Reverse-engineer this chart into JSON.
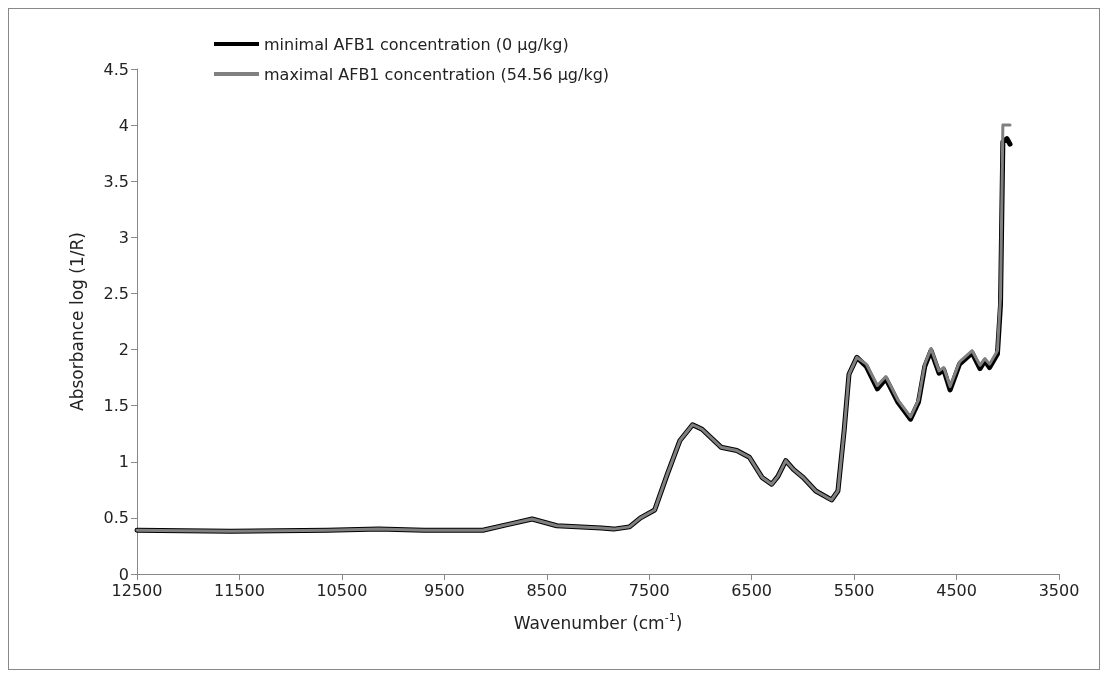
{
  "chart_data": {
    "type": "line",
    "xlabel": "Wavenumber (cm$^{-1}$)",
    "ylabel": "Absorbance log (1/R)",
    "xlim": [
      12500,
      3500
    ],
    "xticks": [
      12500,
      11500,
      10500,
      9500,
      8500,
      7500,
      6500,
      5500,
      4500,
      3500
    ],
    "ylim": [
      0,
      4.5
    ],
    "yticks": [
      0,
      0.5,
      1,
      1.5,
      2,
      2.5,
      3,
      3.5,
      4,
      4.5
    ],
    "grid": false,
    "legend": "top left",
    "marker": "none",
    "line_style": "solid",
    "series": [
      {
        "name": "minimal AFB1 concentration (0 µg/kg)",
        "color": "#000000",
        "x": [
          12500,
          11584,
          10641,
          10141,
          9697,
          9124,
          8643,
          8402,
          7967,
          7847,
          7693,
          7585,
          7447,
          7323,
          7200,
          7077,
          6984,
          6799,
          6645,
          6522,
          6398,
          6305,
          6244,
          6167,
          6090,
          5997,
          5874,
          5720,
          5658,
          5597,
          5550,
          5473,
          5381,
          5273,
          5190,
          5072,
          4949,
          4872,
          4810,
          4749,
          4671,
          4625,
          4563,
          4471,
          4348,
          4271,
          4224,
          4178,
          4101,
          4071,
          4048,
          4009,
          3978
        ],
        "values": [
          0.39,
          0.38,
          0.39,
          0.4,
          0.39,
          0.39,
          0.49,
          0.43,
          0.41,
          0.4,
          0.42,
          0.5,
          0.57,
          0.89,
          1.19,
          1.33,
          1.29,
          1.13,
          1.1,
          1.04,
          0.86,
          0.8,
          0.87,
          1.01,
          0.93,
          0.86,
          0.74,
          0.66,
          0.74,
          1.28,
          1.78,
          1.93,
          1.85,
          1.65,
          1.74,
          1.53,
          1.38,
          1.53,
          1.85,
          1.99,
          1.79,
          1.82,
          1.64,
          1.87,
          1.97,
          1.83,
          1.9,
          1.84,
          1.96,
          2.4,
          3.85,
          3.88,
          3.83
        ]
      },
      {
        "name": "maximal AFB1 concentration (54.56 µg/kg)",
        "color": "#808080",
        "x": [
          12500,
          11584,
          10641,
          10141,
          9697,
          9124,
          8643,
          8402,
          7967,
          7847,
          7693,
          7585,
          7447,
          7323,
          7200,
          7077,
          6984,
          6799,
          6645,
          6522,
          6398,
          6305,
          6244,
          6167,
          6090,
          5997,
          5874,
          5720,
          5658,
          5597,
          5550,
          5473,
          5381,
          5273,
          5190,
          5072,
          4949,
          4872,
          4810,
          4749,
          4671,
          4625,
          4563,
          4471,
          4348,
          4271,
          4224,
          4178,
          4101,
          4071,
          4048,
          3978
        ],
        "values": [
          0.39,
          0.38,
          0.39,
          0.4,
          0.39,
          0.39,
          0.49,
          0.43,
          0.41,
          0.4,
          0.42,
          0.5,
          0.57,
          0.89,
          1.19,
          1.33,
          1.29,
          1.13,
          1.1,
          1.04,
          0.86,
          0.8,
          0.87,
          1.01,
          0.93,
          0.86,
          0.74,
          0.66,
          0.74,
          1.28,
          1.78,
          1.93,
          1.87,
          1.68,
          1.76,
          1.55,
          1.4,
          1.55,
          1.87,
          2.01,
          1.81,
          1.84,
          1.67,
          1.89,
          1.99,
          1.86,
          1.92,
          1.87,
          1.99,
          2.47,
          4.0,
          4.0
        ]
      }
    ]
  }
}
